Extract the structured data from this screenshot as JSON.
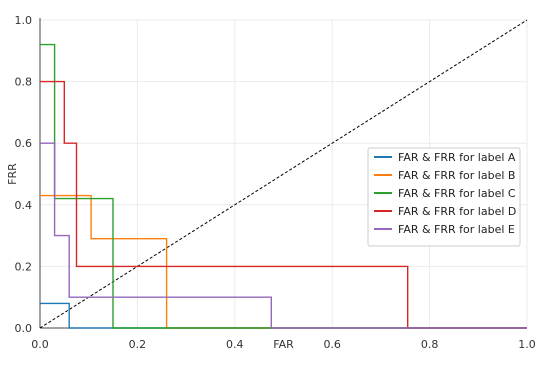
{
  "chart_data": {
    "type": "line",
    "xlabel": "FAR",
    "ylabel": "FRR",
    "xlim": [
      0,
      1
    ],
    "ylim": [
      0,
      1
    ],
    "x_ticks": [
      "0.0",
      "0.2",
      "0.4",
      "0.6",
      "0.8",
      "1.0"
    ],
    "y_ticks": [
      "0.0",
      "0.2",
      "0.4",
      "0.6",
      "0.8",
      "1.0"
    ],
    "grid": true,
    "legend_position": "right",
    "diagonal": {
      "style": "dashed",
      "color": "#000000",
      "points": [
        [
          0,
          0
        ],
        [
          1,
          1
        ]
      ]
    },
    "series": [
      {
        "name": "FAR & FRR for label A",
        "color": "#1f77b4",
        "points": [
          [
            0,
            0.08
          ],
          [
            0.06,
            0.08
          ],
          [
            0.06,
            0.0
          ],
          [
            1,
            0.0
          ]
        ]
      },
      {
        "name": "FAR & FRR for label B",
        "color": "#ff7f0e",
        "points": [
          [
            0,
            0.43
          ],
          [
            0.105,
            0.43
          ],
          [
            0.105,
            0.29
          ],
          [
            0.26,
            0.29
          ],
          [
            0.26,
            0.0
          ],
          [
            1,
            0.0
          ]
        ]
      },
      {
        "name": "FAR & FRR for label C",
        "color": "#2ca02c",
        "points": [
          [
            0,
            0.92
          ],
          [
            0.03,
            0.92
          ],
          [
            0.03,
            0.42
          ],
          [
            0.15,
            0.42
          ],
          [
            0.15,
            0.0
          ],
          [
            1,
            0.0
          ]
        ]
      },
      {
        "name": "FAR & FRR for label D",
        "color": "#d62728",
        "points": [
          [
            0,
            0.8
          ],
          [
            0.05,
            0.8
          ],
          [
            0.05,
            0.6
          ],
          [
            0.075,
            0.6
          ],
          [
            0.075,
            0.2
          ],
          [
            0.755,
            0.2
          ],
          [
            0.755,
            0.0
          ],
          [
            1,
            0.0
          ]
        ]
      },
      {
        "name": "FAR & FRR for label E",
        "color": "#9467bd",
        "points": [
          [
            0,
            0.6
          ],
          [
            0.03,
            0.6
          ],
          [
            0.03,
            0.3
          ],
          [
            0.06,
            0.3
          ],
          [
            0.06,
            0.1
          ],
          [
            0.475,
            0.1
          ],
          [
            0.475,
            0.0
          ],
          [
            1,
            0.0
          ]
        ]
      }
    ]
  }
}
